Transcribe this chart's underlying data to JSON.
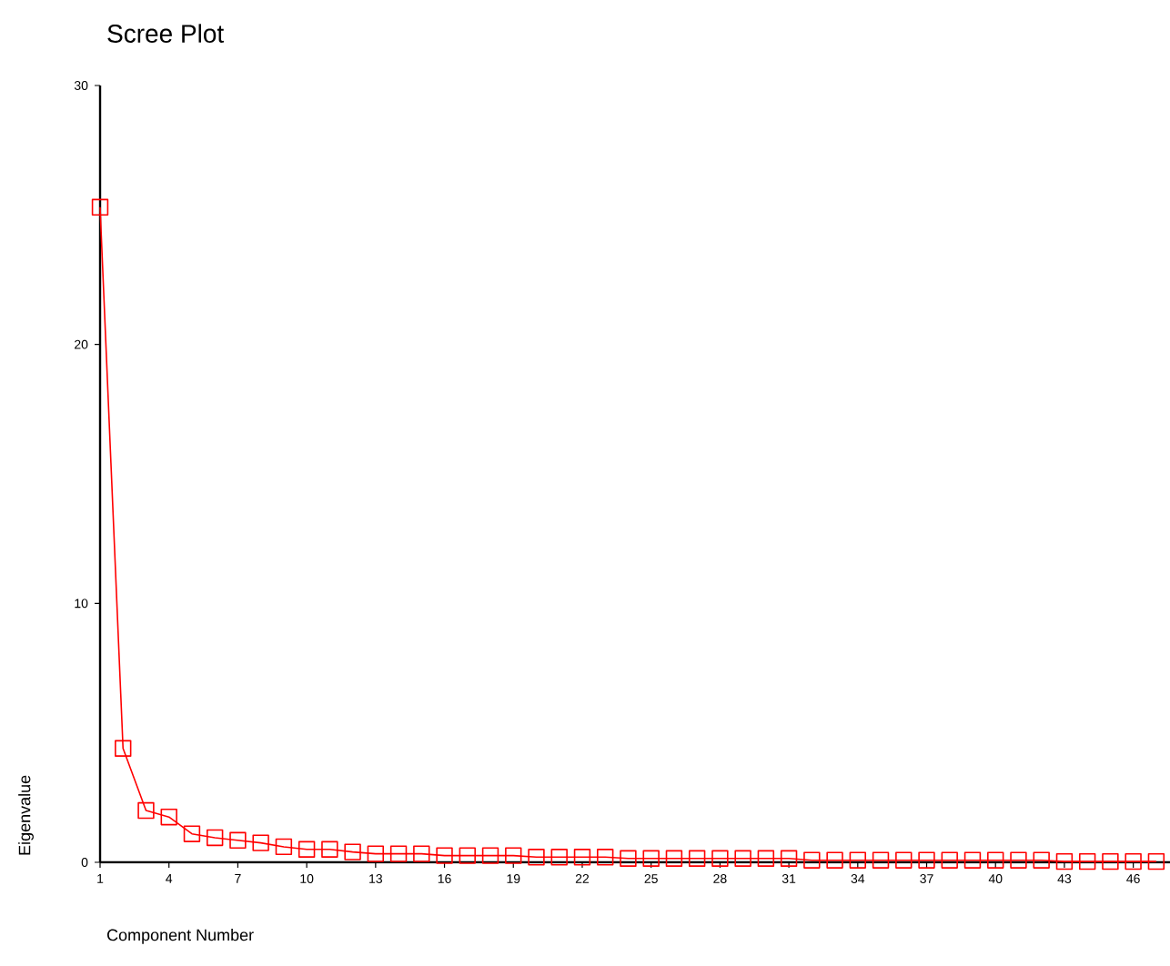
{
  "chart_data": {
    "type": "line",
    "title": "Scree Plot",
    "xlabel": "Component Number",
    "ylabel": "Eigenvalue",
    "x": [
      1,
      2,
      3,
      4,
      5,
      6,
      7,
      8,
      9,
      10,
      11,
      12,
      13,
      14,
      15,
      16,
      17,
      18,
      19,
      20,
      21,
      22,
      23,
      24,
      25,
      26,
      27,
      28,
      29,
      30,
      31,
      32,
      33,
      34,
      35,
      36,
      37,
      38,
      39,
      40,
      41,
      42,
      43,
      44,
      45,
      46,
      47
    ],
    "series": [
      {
        "color": "#ff0000",
        "values": [
          25.3,
          4.4,
          2.0,
          1.75,
          1.1,
          0.95,
          0.85,
          0.75,
          0.6,
          0.5,
          0.5,
          0.4,
          0.33,
          0.33,
          0.33,
          0.26,
          0.26,
          0.26,
          0.26,
          0.2,
          0.2,
          0.2,
          0.2,
          0.15,
          0.15,
          0.15,
          0.15,
          0.15,
          0.15,
          0.15,
          0.15,
          0.08,
          0.08,
          0.08,
          0.08,
          0.08,
          0.08,
          0.08,
          0.08,
          0.08,
          0.08,
          0.08,
          0.03,
          0.03,
          0.03,
          0.03,
          0.03
        ]
      }
    ],
    "xlim": [
      1,
      47.6
    ],
    "xticks": [
      1,
      4,
      7,
      10,
      13,
      16,
      19,
      22,
      25,
      28,
      31,
      34,
      37,
      40,
      43,
      46
    ],
    "ylim": [
      0,
      30
    ],
    "yticks": [
      0,
      10,
      20,
      30
    ],
    "marker": "square",
    "line_style": "solid"
  }
}
